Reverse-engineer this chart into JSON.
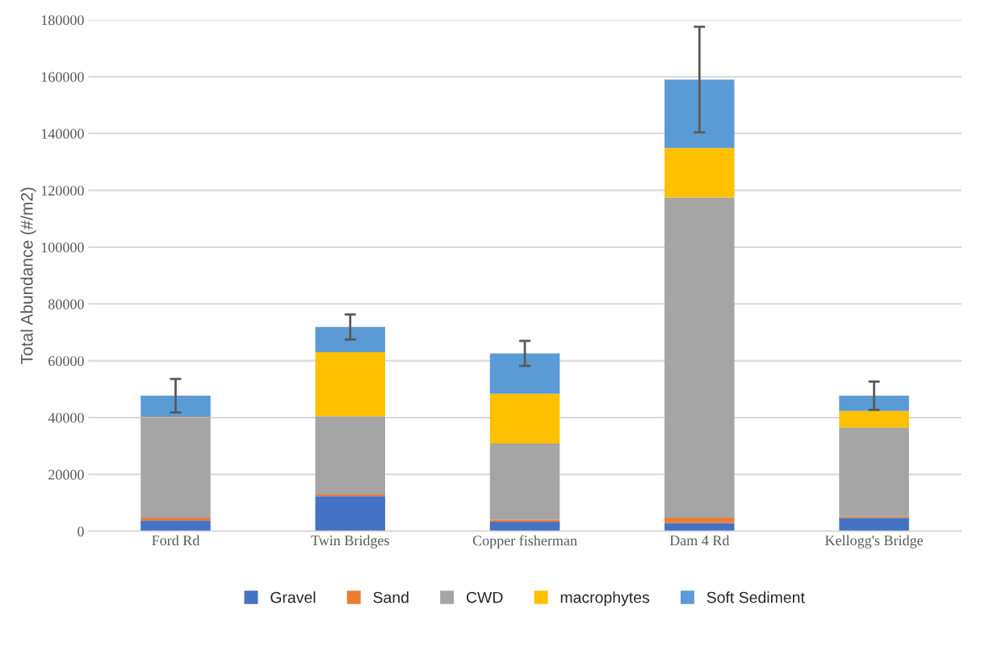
{
  "chart_data": {
    "type": "bar",
    "stacked": true,
    "ylabel": "Total Abundance (#/m2)",
    "categories": [
      "Ford Rd",
      "Twin Bridges",
      "Copper fisherman",
      "Dam 4 Rd",
      "Kellogg's Bridge"
    ],
    "series": [
      {
        "name": "Gravel",
        "color": "#4472c4",
        "values": [
          3800,
          12300,
          3300,
          2900,
          4650
        ]
      },
      {
        "name": "Sand",
        "color": "#ed7d31",
        "values": [
          900,
          700,
          700,
          1800,
          450
        ]
      },
      {
        "name": "CWD",
        "color": "#a5a5a5",
        "values": [
          35400,
          27500,
          26900,
          112800,
          31400
        ]
      },
      {
        "name": "macrophytes",
        "color": "#ffc000",
        "values": [
          200,
          22500,
          17500,
          17400,
          5800
        ]
      },
      {
        "name": "Soft Sediment",
        "color": "#5b9bd5",
        "values": [
          7400,
          8900,
          14200,
          24100,
          5400
        ],
        "errors": [
          5900,
          4400,
          4400,
          18600,
          5000
        ]
      }
    ],
    "ylim": [
      0,
      180000
    ],
    "yticks": [
      0,
      20000,
      40000,
      60000,
      80000,
      100000,
      120000,
      140000,
      160000,
      180000
    ],
    "grid": "y",
    "legend": "bottom"
  }
}
